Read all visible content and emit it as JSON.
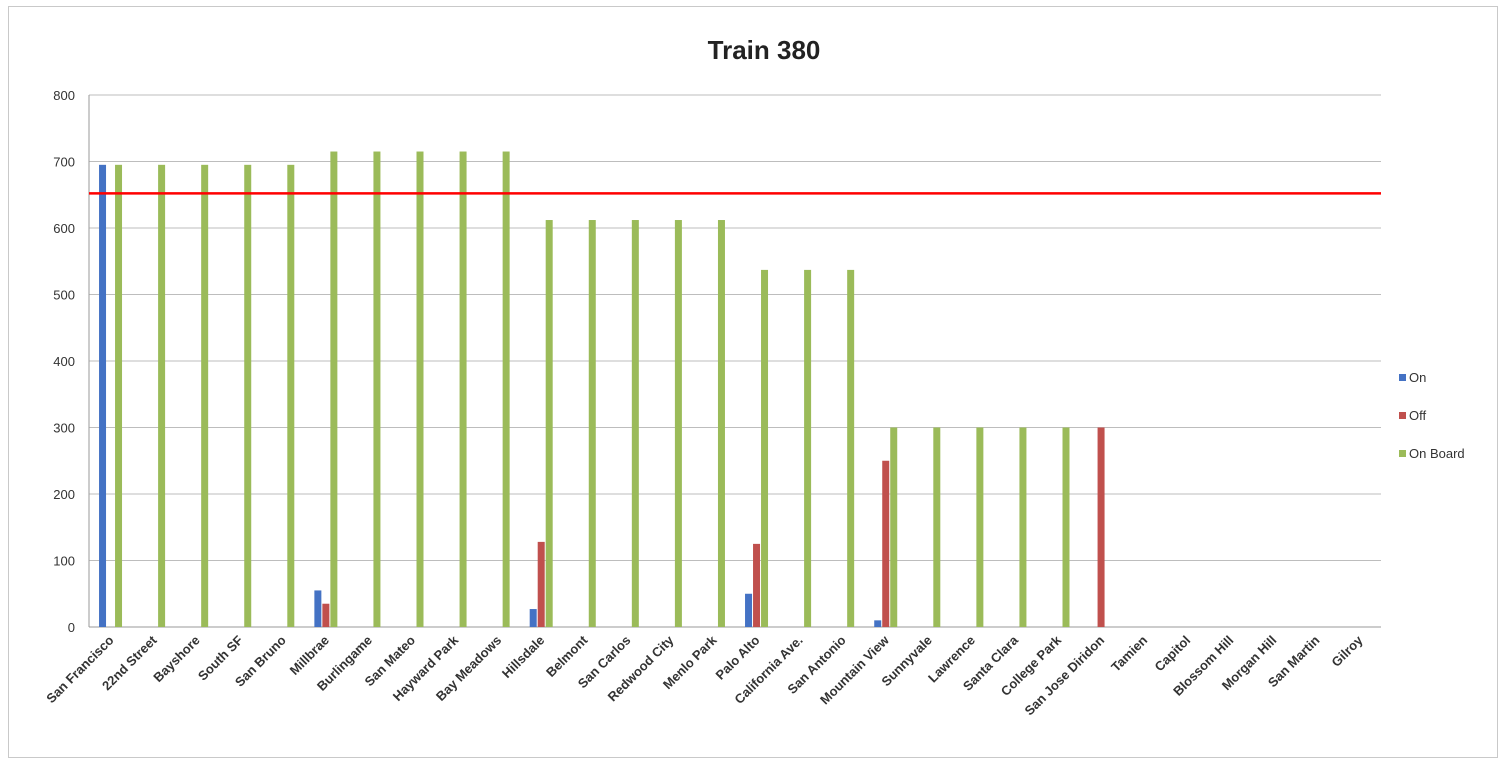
{
  "chart_data": {
    "type": "bar",
    "title": "Train 380",
    "xlabel": "",
    "ylabel": "",
    "ylim": [
      0,
      800
    ],
    "yticks": [
      0,
      100,
      200,
      300,
      400,
      500,
      600,
      700,
      800
    ],
    "grid": true,
    "legend": "right",
    "categories": [
      "San Francisco",
      "22nd Street",
      "Bayshore",
      "South SF",
      "San Bruno",
      "Millbrae",
      "Burlingame",
      "San Mateo",
      "Hayward Park",
      "Bay Meadows",
      "Hillsdale",
      "Belmont",
      "San Carlos",
      "Redwood City",
      "Menlo Park",
      "Palo Alto",
      "California Ave.",
      "San Antonio",
      "Mountain View",
      "Sunnyvale",
      "Lawrence",
      "Santa Clara",
      "College Park",
      "San Jose Diridon",
      "Tamien",
      "Capitol",
      "Blossom Hill",
      "Morgan Hill",
      "San Martin",
      "Gilroy"
    ],
    "series": [
      {
        "name": "On",
        "color": "#4472c4",
        "values": [
          695,
          0,
          0,
          0,
          0,
          55,
          0,
          0,
          0,
          0,
          27,
          0,
          0,
          0,
          0,
          50,
          0,
          0,
          10,
          0,
          0,
          0,
          0,
          0,
          0,
          0,
          0,
          0,
          0,
          0
        ]
      },
      {
        "name": "Off",
        "color": "#c0504d",
        "values": [
          0,
          0,
          0,
          0,
          0,
          35,
          0,
          0,
          0,
          0,
          128,
          0,
          0,
          0,
          0,
          125,
          0,
          0,
          250,
          0,
          0,
          0,
          0,
          300,
          0,
          0,
          0,
          0,
          0,
          0
        ]
      },
      {
        "name": "On Board",
        "color": "#9bbb59",
        "values": [
          695,
          695,
          695,
          695,
          695,
          715,
          715,
          715,
          715,
          715,
          612,
          612,
          612,
          612,
          612,
          537,
          537,
          537,
          300,
          300,
          300,
          300,
          300,
          0,
          0,
          0,
          0,
          0,
          0,
          0
        ]
      }
    ],
    "reference_line": {
      "value": 652,
      "color": "#ff0000"
    }
  }
}
